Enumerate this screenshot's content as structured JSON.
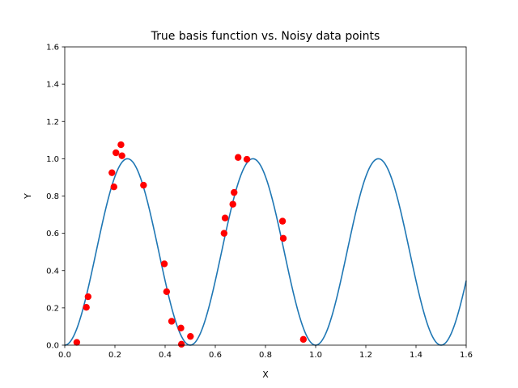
{
  "chart_data": {
    "type": "scatter",
    "title": "True basis function vs. Noisy data points",
    "xlabel": "X",
    "ylabel": "Y",
    "xlim": [
      0.0,
      1.6
    ],
    "ylim": [
      0.0,
      1.6
    ],
    "xticks": [
      "0.0",
      "0.2",
      "0.4",
      "0.6",
      "0.8",
      "1.0",
      "1.2",
      "1.4",
      "1.6"
    ],
    "yticks": [
      "0.0",
      "0.2",
      "0.4",
      "0.6",
      "0.8",
      "1.0",
      "1.2",
      "1.4",
      "1.6"
    ],
    "grid": false,
    "curve": {
      "function": "sin(2*pi*x)^2",
      "color": "#1f77b4"
    },
    "points": {
      "color": "#ff0000",
      "x": [
        0.048,
        0.086,
        0.093,
        0.188,
        0.196,
        0.204,
        0.224,
        0.228,
        0.314,
        0.397,
        0.406,
        0.426,
        0.463,
        0.465,
        0.501,
        0.635,
        0.639,
        0.67,
        0.675,
        0.691,
        0.726,
        0.868,
        0.871,
        0.951
      ],
      "y": [
        0.015,
        0.203,
        0.26,
        0.925,
        0.849,
        1.032,
        1.075,
        1.016,
        0.858,
        0.436,
        0.287,
        0.128,
        0.092,
        0.005,
        0.047,
        0.6,
        0.682,
        0.756,
        0.819,
        1.007,
        0.997,
        0.665,
        0.573,
        0.031
      ]
    }
  }
}
